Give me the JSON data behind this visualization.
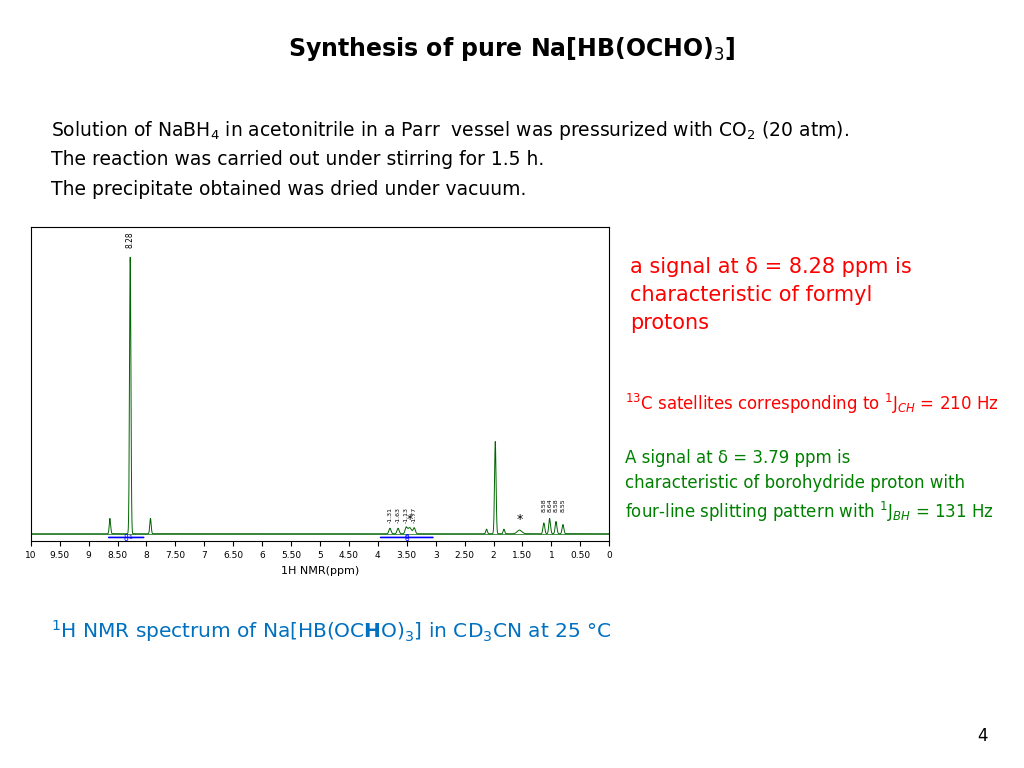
{
  "bg_color": "#ffffff",
  "text_color": "#000000",
  "red_color": "#ff0000",
  "green_color": "#008000",
  "blue_color": "#0070c0",
  "dark_green": "#006400",
  "body_text_line1": "Solution of NaBH$_4$ in acetonitrile in a Parr  vessel was pressurized with CO$_2$ (20 atm).",
  "body_text_line2": "The reaction was carried out under stirring for 1.5 h.",
  "body_text_line3": "The precipitate obtained was dried under vacuum.",
  "annotation1": "a signal at δ = 8.28 ppm is\ncharacteristic of formyl\nprotons",
  "annotation2": "$^{13}$C satellites corresponding to $^1$J$_{CH}$ = 210 Hz",
  "annotation3": "A signal at δ = 3.79 ppm is\ncharacteristic of borohydride proton with\nfour-line splitting pattern with $^1$J$_{BH}$ = 131 Hz",
  "page_number": "4",
  "nmr_xlim_lo": 10.0,
  "nmr_xlim_hi": 0.0,
  "nmr_xticks": [
    10.0,
    9.5,
    9.0,
    8.5,
    8.0,
    7.5,
    7.0,
    6.5,
    6.0,
    5.5,
    5.0,
    4.5,
    4.0,
    3.5,
    3.0,
    2.5,
    2.0,
    1.5,
    1.0,
    0.5,
    0.0
  ]
}
